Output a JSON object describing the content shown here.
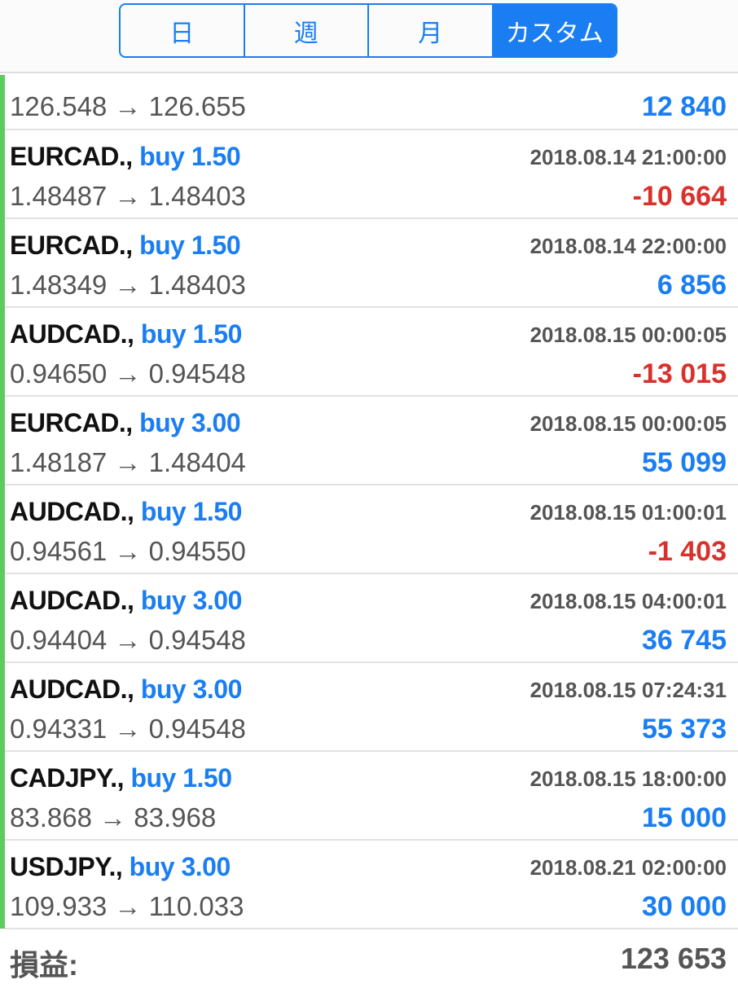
{
  "tabs": [
    {
      "label": "日",
      "active": false
    },
    {
      "label": "週",
      "active": false
    },
    {
      "label": "月",
      "active": false
    },
    {
      "label": "カスタム",
      "active": true
    }
  ],
  "partial_row": {
    "price": "126.548 → 126.655",
    "profit": "12 840"
  },
  "rows": [
    {
      "symbol": "EURCAD.,",
      "trade": "buy 1.50",
      "time": "2018.08.14 21:00:00",
      "price": "1.48487 → 1.48403",
      "profit": "-10 664",
      "negative": true
    },
    {
      "symbol": "EURCAD.,",
      "trade": "buy 1.50",
      "time": "2018.08.14 22:00:00",
      "price": "1.48349 → 1.48403",
      "profit": "6 856",
      "negative": false
    },
    {
      "symbol": "AUDCAD.,",
      "trade": "buy 1.50",
      "time": "2018.08.15 00:00:05",
      "price": "0.94650 → 0.94548",
      "profit": "-13 015",
      "negative": true
    },
    {
      "symbol": "EURCAD.,",
      "trade": "buy 3.00",
      "time": "2018.08.15 00:00:05",
      "price": "1.48187 → 1.48404",
      "profit": "55 099",
      "negative": false
    },
    {
      "symbol": "AUDCAD.,",
      "trade": "buy 1.50",
      "time": "2018.08.15 01:00:01",
      "price": "0.94561 → 0.94550",
      "profit": "-1 403",
      "negative": true
    },
    {
      "symbol": "AUDCAD.,",
      "trade": "buy 3.00",
      "time": "2018.08.15 04:00:01",
      "price": "0.94404 → 0.94548",
      "profit": "36 745",
      "negative": false
    },
    {
      "symbol": "AUDCAD.,",
      "trade": "buy 3.00",
      "time": "2018.08.15 07:24:31",
      "price": "0.94331 → 0.94548",
      "profit": "55 373",
      "negative": false
    },
    {
      "symbol": "CADJPY.,",
      "trade": "buy 1.50",
      "time": "2018.08.15 18:00:00",
      "price": "83.868 → 83.968",
      "profit": "15 000",
      "negative": false
    },
    {
      "symbol": "USDJPY.,",
      "trade": "buy 3.00",
      "time": "2018.08.21 02:00:00",
      "price": "109.933 → 110.033",
      "profit": "30 000",
      "negative": false
    }
  ],
  "footer": {
    "label": "損益:",
    "value": "123 653"
  },
  "colors": {
    "accent": "#1a7ef2",
    "loss": "#d9312b",
    "indicator": "#5ccc5c"
  }
}
